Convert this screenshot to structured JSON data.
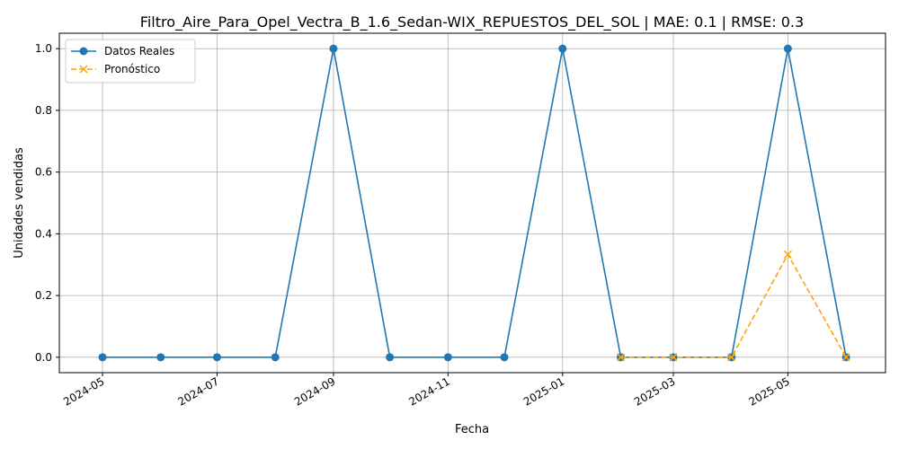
{
  "chart_data": {
    "type": "line",
    "title": "Filtro_Aire_Para_Opel_Vectra_B_1.6_Sedan-WIX_REPUESTOS_DEL_SOL | MAE: 0.1 | RMSE: 0.3",
    "xlabel": "Fecha",
    "ylabel": "Unidades vendidas",
    "x_ticks": [
      "2024-05",
      "2024-07",
      "2024-09",
      "2024-11",
      "2025-01",
      "2025-03",
      "2025-05"
    ],
    "y_ticks": [
      "0.0",
      "0.2",
      "0.4",
      "0.6",
      "0.8",
      "1.0"
    ],
    "xlim": [
      "2024-04-08",
      "2025-06-22"
    ],
    "ylim": [
      -0.05,
      1.05
    ],
    "grid": true,
    "legend_position": "top-left",
    "series": [
      {
        "name": "Datos Reales",
        "color": "#1f77b4",
        "style": "solid",
        "marker": "circle",
        "x": [
          "2024-05-01",
          "2024-06-01",
          "2024-07-01",
          "2024-08-01",
          "2024-09-01",
          "2024-10-01",
          "2024-11-01",
          "2024-12-01",
          "2025-01-01",
          "2025-02-01",
          "2025-03-01",
          "2025-04-01",
          "2025-05-01",
          "2025-06-01"
        ],
        "values": [
          0,
          0,
          0,
          0,
          1,
          0,
          0,
          0,
          1,
          0,
          0,
          0,
          1,
          0
        ]
      },
      {
        "name": "Pronóstico",
        "color": "#ffa500",
        "style": "dashed",
        "marker": "x",
        "x": [
          "2025-02-01",
          "2025-03-01",
          "2025-04-01",
          "2025-05-01",
          "2025-06-01"
        ],
        "values": [
          0,
          0,
          0,
          0.333,
          0
        ]
      }
    ]
  }
}
